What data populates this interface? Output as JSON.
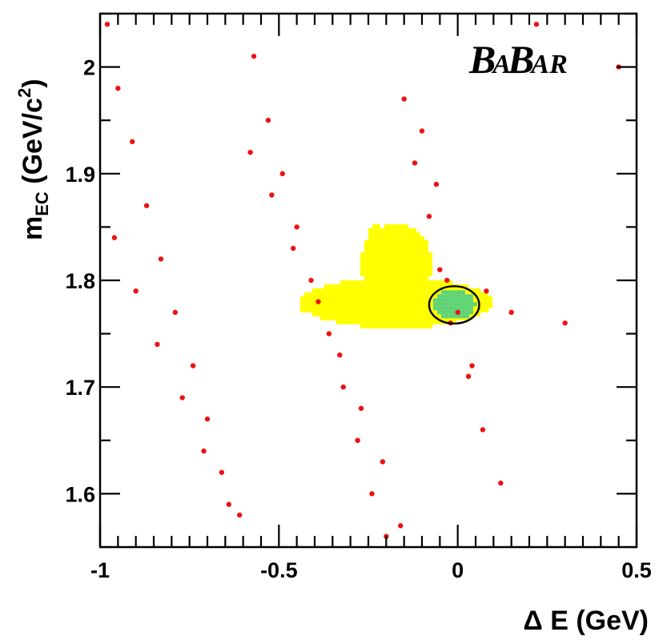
{
  "chart_data": {
    "type": "scatter",
    "xlabel": "Δ E (GeV)",
    "ylabel": {
      "main": "m",
      "sub": "EC",
      "unit": " (GeV/c",
      "sup": "2",
      "close": ")"
    },
    "xlim": [
      -1.0,
      0.5
    ],
    "ylim": [
      1.55,
      2.05
    ],
    "xticks": [
      -1.0,
      -0.5,
      0.0,
      0.5
    ],
    "xtick_labels": [
      "-1",
      "-0.5",
      "0",
      "0.5"
    ],
    "yticks": [
      1.6,
      1.7,
      1.8,
      1.9,
      2.0
    ],
    "ytick_labels": [
      "1.6",
      "1.7",
      "1.8",
      "1.9",
      "2"
    ],
    "grid": false,
    "logo": {
      "parts": [
        "B",
        "A",
        "B",
        "AR"
      ]
    },
    "colors": {
      "points": "#ee1111",
      "signal_outer": "#ffff00",
      "signal_inner": "#5ed37b",
      "ellipse": "#000000"
    },
    "signal_region": {
      "inner_ellipse": {
        "x_center": -0.01,
        "y_center": 1.777,
        "x_halfwidth": 0.07,
        "y_halfwidth": 0.0175
      }
    },
    "series": [
      {
        "points_x": [
          -0.98,
          -0.95,
          -0.91,
          -0.87,
          -0.83,
          -0.79,
          -0.74,
          -0.7,
          -0.66,
          -0.61,
          -0.57,
          -0.53,
          -0.49,
          -0.45,
          -0.41,
          -0.36,
          -0.32,
          -0.28,
          -0.24,
          -0.2,
          -0.15,
          -0.12,
          -0.08,
          -0.05,
          -0.02,
          0.03,
          0.07,
          0.12,
          0.22,
          0.3,
          0.45,
          -0.96,
          -0.9,
          -0.84,
          -0.77,
          -0.71,
          -0.64,
          -0.58,
          -0.52,
          -0.46,
          -0.39,
          -0.33,
          -0.27,
          -0.21,
          -0.16,
          -0.1,
          -0.06,
          -0.03,
          0.0,
          0.04,
          0.08,
          0.15
        ],
        "points_y": [
          2.04,
          1.98,
          1.93,
          1.87,
          1.82,
          1.77,
          1.72,
          1.67,
          1.62,
          1.58,
          2.01,
          1.95,
          1.9,
          1.85,
          1.8,
          1.75,
          1.7,
          1.65,
          1.6,
          1.56,
          1.97,
          1.91,
          1.86,
          1.81,
          1.76,
          1.71,
          1.66,
          1.61,
          2.04,
          1.76,
          2.0,
          1.84,
          1.79,
          1.74,
          1.69,
          1.64,
          1.59,
          1.92,
          1.88,
          1.83,
          1.78,
          1.73,
          1.68,
          1.63,
          1.57,
          1.94,
          1.89,
          1.8,
          1.77,
          1.72,
          1.79,
          1.77
        ]
      }
    ]
  }
}
